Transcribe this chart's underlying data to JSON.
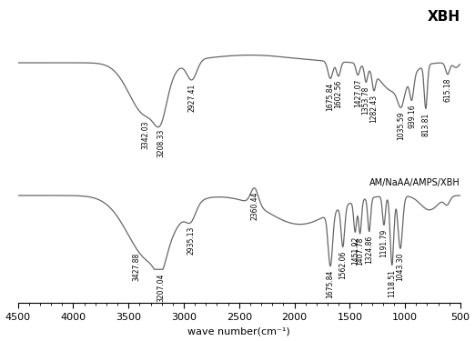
{
  "xmin": 500,
  "xmax": 4500,
  "background_color": "#ffffff",
  "line_color": "#666666",
  "label_fontsize": 8,
  "tick_fontsize": 8,
  "annotation_fontsize": 5.5,
  "xlabel": "wave number(cm⁻¹)",
  "spectrum1_label": "XBH",
  "spectrum2_label": "AM/NaAA/AMPS/XBH",
  "xticks": [
    4500,
    4000,
    3500,
    3000,
    2500,
    2000,
    1500,
    1000,
    500
  ]
}
